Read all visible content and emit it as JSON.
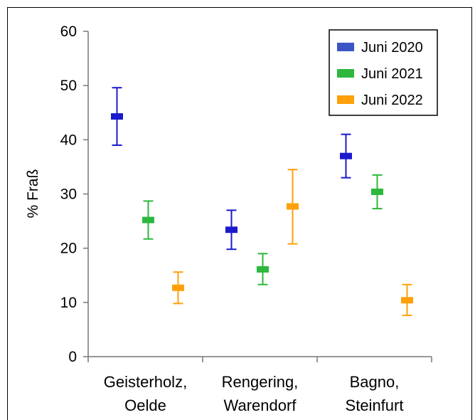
{
  "chart_data": {
    "type": "scatter",
    "subtype": "point-with-error-bars",
    "ylabel": "% Fraß",
    "ylim": [
      0,
      60
    ],
    "yticks": [
      0,
      10,
      20,
      30,
      40,
      50,
      60
    ],
    "categories": [
      [
        "Geisterholz,",
        "Oelde"
      ],
      [
        "Rengering,",
        "Warendorf"
      ],
      [
        "Bagno,",
        "Steinfurt"
      ]
    ],
    "legend_position": "top-right",
    "series": [
      {
        "name": "Juni 2020",
        "color": "#1a1acc",
        "legend_color": "#3b55c4",
        "values": [
          44.3,
          23.4,
          37.0
        ],
        "lower": [
          39.0,
          19.8,
          33.0
        ],
        "upper": [
          49.6,
          27.0,
          41.0
        ]
      },
      {
        "name": "Juni 2021",
        "color": "#2db83d",
        "legend_color": "#2db83d",
        "values": [
          25.2,
          16.1,
          30.4
        ],
        "lower": [
          21.7,
          13.3,
          27.3
        ],
        "upper": [
          28.7,
          19.0,
          33.5
        ]
      },
      {
        "name": "Juni 2022",
        "color": "#ff9f0a",
        "legend_color": "#ff9f0a",
        "values": [
          12.7,
          27.7,
          10.4
        ],
        "lower": [
          9.8,
          20.8,
          7.6
        ],
        "upper": [
          15.6,
          34.5,
          13.3
        ]
      }
    ]
  }
}
